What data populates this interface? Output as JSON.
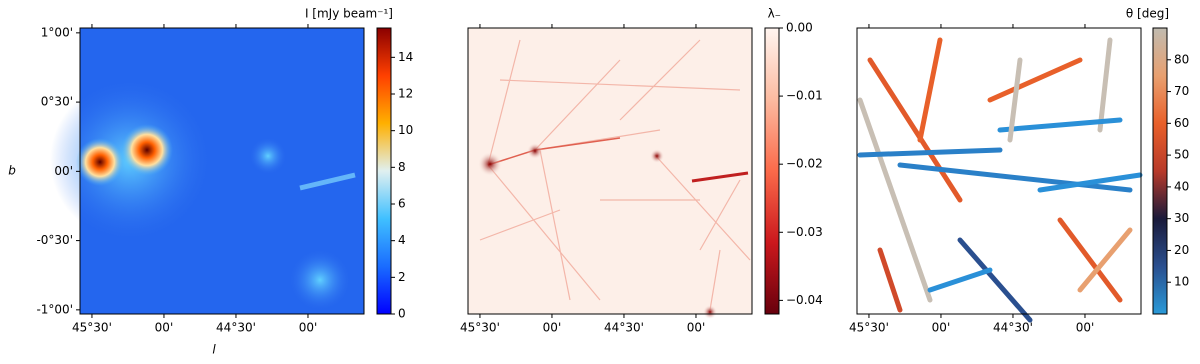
{
  "chart_data": [
    {
      "type": "image",
      "xlabel": "l",
      "ylabel": "b",
      "colorbar_label": "I [mJy beam⁻¹]",
      "xlim": [
        45.583,
        43.611
      ],
      "ylim": [
        -1.03,
        1.035
      ],
      "xticks": [
        {
          "value": 45.5,
          "label": "45°30'"
        },
        {
          "value": 45.0,
          "label": "00'"
        },
        {
          "value": 44.5,
          "label": "44°30'"
        },
        {
          "value": 44.0,
          "label": "00'"
        }
      ],
      "yticks": [
        {
          "value": -1.0,
          "label": "-1°00'"
        },
        {
          "value": -0.5,
          "label": "-0°30'"
        },
        {
          "value": 0,
          "label": "00'"
        },
        {
          "value": 0.5,
          "label": "0°30'"
        },
        {
          "value": 1.0,
          "label": "1°00'"
        }
      ],
      "clim": [
        0,
        15.6
      ],
      "cticks": [
        0,
        2,
        4,
        6,
        8,
        10,
        12,
        14
      ],
      "colormap": [
        "#0000ff",
        "#1a6cff",
        "#40c0ff",
        "#e0f0f0",
        "#ffb000",
        "#ff4000",
        "#8b0000"
      ]
    },
    {
      "type": "image",
      "colorbar_label": "λ₋",
      "xlim": [
        45.583,
        43.611
      ],
      "ylim": [
        -1.03,
        1.035
      ],
      "xticks": [
        {
          "value": 45.5,
          "label": "45°30'"
        },
        {
          "value": 45.0,
          "label": "00'"
        },
        {
          "value": 44.5,
          "label": "44°30'"
        },
        {
          "value": 44.0,
          "label": "00'"
        }
      ],
      "clim": [
        -0.042,
        0
      ],
      "cticks": [
        {
          "value": -0.04,
          "label": "−0.04"
        },
        {
          "value": -0.03,
          "label": "−0.03"
        },
        {
          "value": -0.02,
          "label": "−0.02"
        },
        {
          "value": -0.01,
          "label": "−0.01"
        },
        {
          "value": 0,
          "label": "0.00"
        }
      ],
      "colormap": [
        "#67000d",
        "#cb181d",
        "#fb6a4a",
        "#fcbba1",
        "#fff5f0"
      ]
    },
    {
      "type": "image",
      "colorbar_label": "θ [deg]",
      "xlim": [
        45.583,
        43.611
      ],
      "ylim": [
        -1.03,
        1.035
      ],
      "xticks": [
        {
          "value": 45.5,
          "label": "45°30'"
        },
        {
          "value": 45.0,
          "label": "00'"
        },
        {
          "value": 44.5,
          "label": "44°30'"
        },
        {
          "value": 44.0,
          "label": "00'"
        }
      ],
      "clim": [
        0,
        90
      ],
      "cticks": [
        10,
        20,
        30,
        40,
        50,
        60,
        70,
        80
      ],
      "colormap": [
        "#2a9ad8",
        "#2a4f8f",
        "#1a1a3a",
        "#b83a2a",
        "#e8602a",
        "#e8a070",
        "#c0bbb0"
      ]
    }
  ]
}
